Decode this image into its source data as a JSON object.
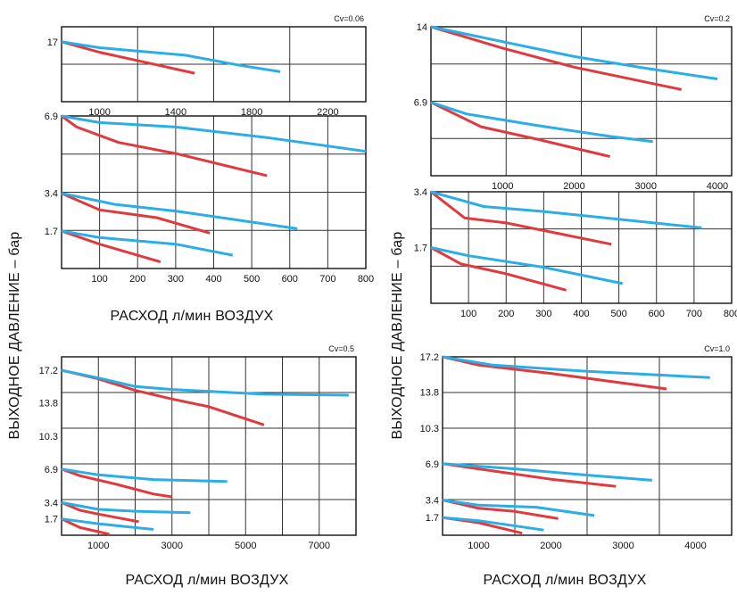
{
  "labels": {
    "y_title": "ВЫХОДНОЕ ДАВЛЕНИЕ – бар",
    "x_title": "РАСХОД л/мин ВОЗДУХ"
  },
  "colors": {
    "red": "#e03a3e",
    "blue": "#2aaee5",
    "grid": "#222222"
  },
  "chart_data": [
    {
      "id": "tl_top",
      "type": "line",
      "title": "Cv=0.06",
      "xlim": [
        800,
        2400
      ],
      "ylim": [
        13.0,
        18.0
      ],
      "x_ticks": [
        1000,
        1400,
        1800,
        2200
      ],
      "y_ticks": [
        {
          "v": 17,
          "label": "17"
        }
      ],
      "series": [
        {
          "color": "red",
          "points": [
            [
              800,
              17
            ],
            [
              1000,
              16.3
            ],
            [
              1250,
              15.6
            ],
            [
              1500,
              14.9
            ]
          ]
        },
        {
          "color": "blue",
          "points": [
            [
              800,
              17
            ],
            [
              1000,
              16.6
            ],
            [
              1450,
              16.1
            ],
            [
              1750,
              15.4
            ],
            [
              1950,
              15
            ]
          ]
        }
      ]
    },
    {
      "id": "tl_bot",
      "type": "line",
      "title": "",
      "xlim": [
        0,
        800
      ],
      "ylim": [
        0,
        6.9
      ],
      "x_ticks": [
        100,
        200,
        300,
        400,
        500,
        600,
        700,
        800
      ],
      "y_ticks": [
        {
          "v": 6.9,
          "label": "6.9"
        },
        {
          "v": 3.4,
          "label": "3.4"
        },
        {
          "v": 1.7,
          "label": "1.7"
        }
      ],
      "series": [
        {
          "color": "red",
          "points": [
            [
              0,
              6.9
            ],
            [
              40,
              6.4
            ],
            [
              150,
              5.7
            ],
            [
              300,
              5.2
            ],
            [
              540,
              4.2
            ]
          ]
        },
        {
          "color": "blue",
          "points": [
            [
              0,
              6.9
            ],
            [
              100,
              6.6
            ],
            [
              300,
              6.4
            ],
            [
              550,
              5.9
            ],
            [
              800,
              5.3
            ]
          ]
        },
        {
          "color": "red",
          "points": [
            [
              0,
              3.4
            ],
            [
              100,
              2.65
            ],
            [
              250,
              2.3
            ],
            [
              390,
              1.6
            ]
          ]
        },
        {
          "color": "blue",
          "points": [
            [
              0,
              3.4
            ],
            [
              140,
              2.9
            ],
            [
              300,
              2.6
            ],
            [
              620,
              1.8
            ]
          ]
        },
        {
          "color": "red",
          "points": [
            [
              0,
              1.7
            ],
            [
              100,
              1.1
            ],
            [
              260,
              0.3
            ]
          ]
        },
        {
          "color": "blue",
          "points": [
            [
              0,
              1.7
            ],
            [
              100,
              1.4
            ],
            [
              300,
              1.1
            ],
            [
              450,
              0.6
            ]
          ]
        }
      ]
    },
    {
      "id": "tr_top",
      "type": "line",
      "title": "Cv=0.2",
      "xlim": [
        0,
        4200
      ],
      "ylim": [
        0,
        14
      ],
      "x_ticks": [
        1000,
        2000,
        3000,
        4000
      ],
      "y_ticks": [
        {
          "v": 14,
          "label": "14"
        },
        {
          "v": 6.9,
          "label": "6.9"
        }
      ],
      "series": [
        {
          "color": "red",
          "points": [
            [
              0,
              14
            ],
            [
              1000,
              12
            ],
            [
              2000,
              10.2
            ],
            [
              3500,
              8.1
            ]
          ]
        },
        {
          "color": "blue",
          "points": [
            [
              0,
              14
            ],
            [
              1000,
              12.6
            ],
            [
              2000,
              11.2
            ],
            [
              3000,
              10.1
            ],
            [
              4000,
              9.1
            ]
          ]
        },
        {
          "color": "red",
          "points": [
            [
              0,
              6.9
            ],
            [
              700,
              4.6
            ],
            [
              1500,
              3.4
            ],
            [
              2500,
              1.8
            ]
          ]
        },
        {
          "color": "blue",
          "points": [
            [
              0,
              6.9
            ],
            [
              500,
              5.8
            ],
            [
              1500,
              4.7
            ],
            [
              2500,
              3.7
            ],
            [
              3100,
              3.2
            ]
          ]
        }
      ]
    },
    {
      "id": "tr_bot",
      "type": "line",
      "title": "",
      "xlim": [
        0,
        800
      ],
      "ylim": [
        0,
        3.4
      ],
      "x_ticks": [
        100,
        200,
        300,
        400,
        500,
        600,
        700,
        800
      ],
      "y_ticks": [
        {
          "v": 3.4,
          "label": "3.4"
        },
        {
          "v": 1.7,
          "label": "1.7"
        }
      ],
      "series": [
        {
          "color": "red",
          "points": [
            [
              0,
              3.4
            ],
            [
              90,
              2.6
            ],
            [
              200,
              2.45
            ],
            [
              480,
              1.8
            ]
          ]
        },
        {
          "color": "blue",
          "points": [
            [
              0,
              3.4
            ],
            [
              140,
              2.95
            ],
            [
              300,
              2.8
            ],
            [
              720,
              2.3
            ]
          ]
        },
        {
          "color": "red",
          "points": [
            [
              0,
              1.7
            ],
            [
              80,
              1.2
            ],
            [
              200,
              0.9
            ],
            [
              360,
              0.4
            ]
          ]
        },
        {
          "color": "blue",
          "points": [
            [
              0,
              1.7
            ],
            [
              100,
              1.45
            ],
            [
              300,
              1.1
            ],
            [
              510,
              0.6
            ]
          ]
        }
      ]
    },
    {
      "id": "bl",
      "type": "line",
      "title": "Cv=0.5",
      "xlim": [
        0,
        8000
      ],
      "ylim": [
        0,
        18.6
      ],
      "x_ticks": [
        1000,
        3000,
        5000,
        7000
      ],
      "y_ticks": [
        {
          "v": 17.2,
          "label": "17.2"
        },
        {
          "v": 13.8,
          "label": "13.8"
        },
        {
          "v": 10.3,
          "label": "10.3"
        },
        {
          "v": 6.9,
          "label": "6.9"
        },
        {
          "v": 3.4,
          "label": "3.4"
        },
        {
          "v": 1.7,
          "label": "1.7"
        }
      ],
      "series": [
        {
          "color": "red",
          "points": [
            [
              0,
              17.2
            ],
            [
              1000,
              16.3
            ],
            [
              2000,
              15.1
            ],
            [
              3000,
              14.2
            ],
            [
              4000,
              13.4
            ],
            [
              5500,
              11.5
            ]
          ]
        },
        {
          "color": "blue",
          "points": [
            [
              0,
              17.2
            ],
            [
              1000,
              16.4
            ],
            [
              2000,
              15.5
            ],
            [
              3000,
              15.2
            ],
            [
              5500,
              14.7
            ],
            [
              7800,
              14.6
            ]
          ]
        },
        {
          "color": "red",
          "points": [
            [
              0,
              6.9
            ],
            [
              500,
              6.2
            ],
            [
              1500,
              5.3
            ],
            [
              2500,
              4.3
            ],
            [
              3000,
              4.0
            ]
          ]
        },
        {
          "color": "blue",
          "points": [
            [
              0,
              6.9
            ],
            [
              1000,
              6.3
            ],
            [
              2500,
              5.8
            ],
            [
              4500,
              5.6
            ]
          ]
        },
        {
          "color": "red",
          "points": [
            [
              0,
              3.4
            ],
            [
              500,
              2.6
            ],
            [
              1000,
              2.2
            ],
            [
              2100,
              1.4
            ]
          ]
        },
        {
          "color": "blue",
          "points": [
            [
              0,
              3.4
            ],
            [
              1000,
              2.7
            ],
            [
              2000,
              2.5
            ],
            [
              3500,
              2.35
            ]
          ]
        },
        {
          "color": "red",
          "points": [
            [
              0,
              1.7
            ],
            [
              500,
              0.8
            ],
            [
              1300,
              0.1
            ]
          ]
        },
        {
          "color": "blue",
          "points": [
            [
              0,
              1.7
            ],
            [
              1000,
              1.2
            ],
            [
              2500,
              0.6
            ]
          ]
        }
      ]
    },
    {
      "id": "br",
      "type": "line",
      "title": "Cv=1.0",
      "xlim": [
        500,
        4500
      ],
      "ylim": [
        0,
        17.2
      ],
      "x_ticks": [
        1000,
        2000,
        3000,
        4000
      ],
      "y_ticks": [
        {
          "v": 17.2,
          "label": "17.2"
        },
        {
          "v": 13.8,
          "label": "13.8"
        },
        {
          "v": 10.3,
          "label": "10.3"
        },
        {
          "v": 6.9,
          "label": "6.9"
        },
        {
          "v": 3.4,
          "label": "3.4"
        },
        {
          "v": 1.7,
          "label": "1.7"
        }
      ],
      "series": [
        {
          "color": "red",
          "points": [
            [
              500,
              17.2
            ],
            [
              1000,
              16.4
            ],
            [
              2000,
              15.6
            ],
            [
              3600,
              14.1
            ]
          ]
        },
        {
          "color": "blue",
          "points": [
            [
              500,
              17.2
            ],
            [
              1200,
              16.4
            ],
            [
              2500,
              15.8
            ],
            [
              4200,
              15.2
            ]
          ]
        },
        {
          "color": "red",
          "points": [
            [
              500,
              6.9
            ],
            [
              1000,
              6.4
            ],
            [
              2000,
              5.4
            ],
            [
              2900,
              4.7
            ]
          ]
        },
        {
          "color": "blue",
          "points": [
            [
              500,
              6.9
            ],
            [
              1500,
              6.4
            ],
            [
              2500,
              5.8
            ],
            [
              3400,
              5.3
            ]
          ]
        },
        {
          "color": "red",
          "points": [
            [
              500,
              3.4
            ],
            [
              1000,
              2.6
            ],
            [
              1500,
              2.3
            ],
            [
              2100,
              1.6
            ]
          ]
        },
        {
          "color": "blue",
          "points": [
            [
              500,
              3.4
            ],
            [
              1000,
              2.9
            ],
            [
              1800,
              2.7
            ],
            [
              2600,
              1.9
            ]
          ]
        },
        {
          "color": "red",
          "points": [
            [
              500,
              1.7
            ],
            [
              1000,
              1.2
            ],
            [
              1600,
              0.2
            ]
          ]
        },
        {
          "color": "blue",
          "points": [
            [
              500,
              1.7
            ],
            [
              1000,
              1.4
            ],
            [
              1900,
              0.5
            ]
          ]
        }
      ]
    }
  ]
}
